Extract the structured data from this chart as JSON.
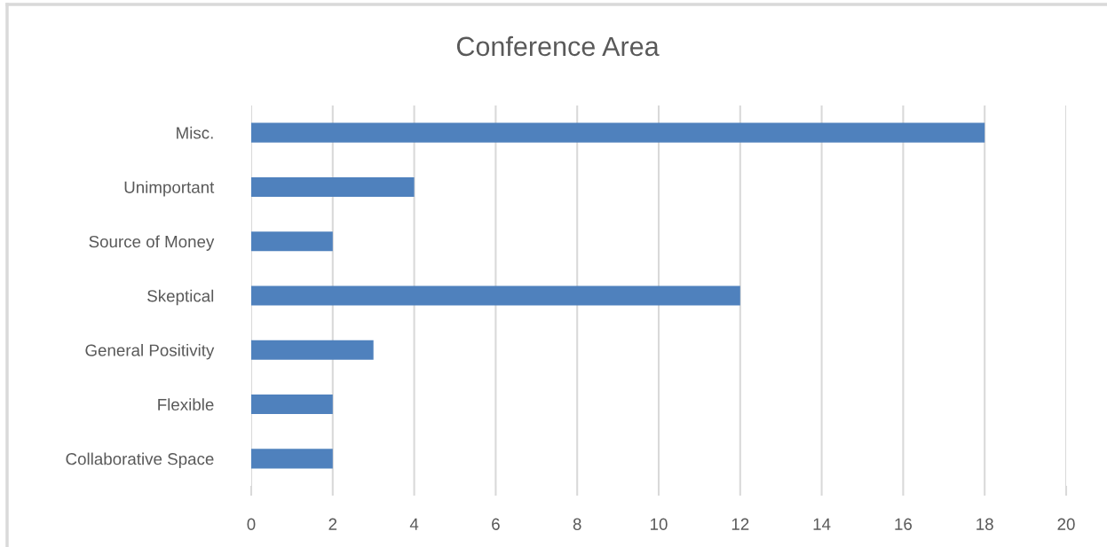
{
  "chart_data": {
    "type": "bar",
    "orientation": "horizontal",
    "title": "Conference Area",
    "categories": [
      "Misc.",
      "Unimportant",
      "Source of Money",
      "Skeptical",
      "General Positivity",
      "Flexible",
      "Collaborative Space"
    ],
    "values": [
      18,
      4,
      2,
      12,
      3,
      2,
      2
    ],
    "color": "#4f81bd",
    "xlim": [
      0,
      20
    ],
    "xticks": [
      0,
      2,
      4,
      6,
      8,
      10,
      12,
      14,
      16,
      18,
      20
    ],
    "grid": "x"
  }
}
